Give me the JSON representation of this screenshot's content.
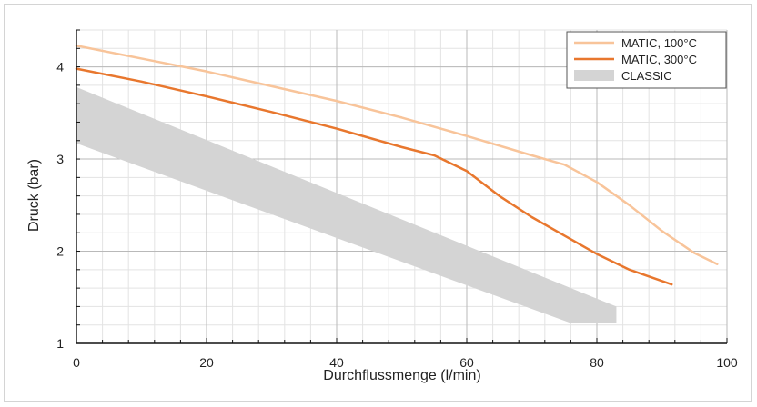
{
  "chart_data": {
    "type": "line",
    "xlabel": "Durchflussmenge (l/min)",
    "ylabel": "Druck (bar)",
    "xlim": [
      0,
      100
    ],
    "ylim": [
      1,
      4.4
    ],
    "x_ticks": [
      0,
      20,
      40,
      60,
      80,
      100
    ],
    "y_ticks": [
      1,
      2,
      3,
      4
    ],
    "grid": true,
    "legend_position": "top-right",
    "series": [
      {
        "name": "MATIC, 100°C",
        "color": "#f8c49a",
        "type": "line",
        "x": [
          0,
          10,
          20,
          30,
          40,
          50,
          60,
          70,
          75,
          80,
          85,
          90,
          95,
          98.5
        ],
        "y": [
          4.23,
          4.09,
          3.95,
          3.79,
          3.63,
          3.45,
          3.25,
          3.04,
          2.94,
          2.75,
          2.5,
          2.22,
          1.98,
          1.86
        ]
      },
      {
        "name": "MATIC, 300°C",
        "color": "#e8772e",
        "type": "line",
        "x": [
          0,
          10,
          20,
          30,
          40,
          50,
          55,
          60,
          65,
          70,
          75,
          80,
          85,
          91.5
        ],
        "y": [
          3.98,
          3.84,
          3.68,
          3.51,
          3.33,
          3.13,
          3.04,
          2.87,
          2.6,
          2.37,
          2.17,
          1.97,
          1.8,
          1.64
        ]
      },
      {
        "name": "CLASSIC",
        "color": "#d4d4d4",
        "type": "band",
        "x": [
          0,
          76,
          83
        ],
        "upper": [
          3.78,
          1.6,
          1.4
        ],
        "lower": [
          3.17,
          1.22,
          1.22
        ]
      }
    ]
  }
}
